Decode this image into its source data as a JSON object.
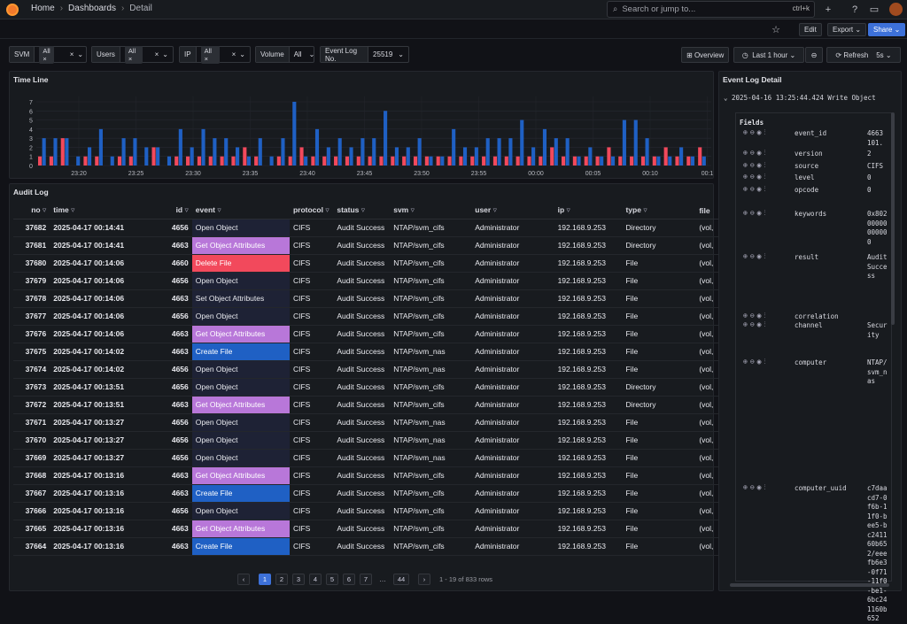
{
  "topbar": {
    "crumbs": [
      "Home",
      "Dashboards",
      "Detail"
    ],
    "search_placeholder": "Search or jump to...",
    "shortcut": "ctrl+k"
  },
  "toolbar": {
    "edit": "Edit",
    "export": "Export",
    "share": "Share"
  },
  "variables": [
    {
      "label": "SVM",
      "value": "All"
    },
    {
      "label": "Users",
      "value": "All"
    },
    {
      "label": "IP",
      "value": "All"
    },
    {
      "label": "Volume",
      "value": "All"
    },
    {
      "label": "Event Log No.",
      "value": "25519"
    }
  ],
  "controls": {
    "overview": "Overview",
    "timerange": "Last 1 hour",
    "refresh": "Refresh",
    "interval": "5s"
  },
  "timeline": {
    "title": "Time Line",
    "y_ticks": [
      "7",
      "6",
      "5",
      "4",
      "3",
      "2",
      "1",
      "0"
    ],
    "x_ticks": [
      "23:20",
      "23:25",
      "23:30",
      "23:35",
      "23:40",
      "23:45",
      "23:50",
      "23:55",
      "00:00",
      "00:05",
      "00:10",
      "00:1"
    ]
  },
  "chart_data": {
    "type": "bar",
    "title": "Time Line",
    "ylim": [
      0,
      7
    ],
    "series": [
      {
        "values": [
          3,
          3,
          3,
          1,
          2,
          4,
          1,
          3,
          3,
          2,
          2,
          1,
          4,
          2,
          4,
          3,
          3,
          2,
          1,
          3,
          1,
          3,
          7,
          1,
          4,
          2,
          3,
          2,
          3,
          3,
          6,
          2,
          2,
          3,
          1,
          1,
          4,
          2,
          2,
          3,
          3,
          3,
          5,
          2,
          4,
          3,
          3,
          1,
          2,
          1,
          1,
          5,
          5,
          3,
          1,
          1,
          2,
          1,
          1
        ]
      },
      {
        "values": [
          1,
          1,
          3,
          0,
          1,
          1,
          0,
          1,
          1,
          0,
          2,
          0,
          1,
          1,
          1,
          1,
          1,
          1,
          2,
          1,
          0,
          1,
          1,
          2,
          1,
          1,
          1,
          1,
          1,
          1,
          1,
          1,
          1,
          1,
          1,
          1,
          1,
          1,
          1,
          1,
          1,
          1,
          1,
          1,
          1,
          2,
          1,
          1,
          1,
          1,
          2,
          1,
          1,
          1,
          1,
          2,
          1,
          1,
          2
        ]
      }
    ]
  },
  "audit": {
    "title": "Audit Log",
    "columns": [
      "no",
      "time",
      "id",
      "event",
      "protocol",
      "status",
      "svm",
      "user",
      "ip",
      "type",
      "file"
    ],
    "rows": [
      [
        "37682",
        "2025-04-17 00:14:41",
        "4656",
        "Open Object",
        "CIFS",
        "Audit Success",
        "NTAP/svm_cifs",
        "Administrator",
        "192.168.9.253",
        "Directory",
        "(vol,"
      ],
      [
        "37681",
        "2025-04-17 00:14:41",
        "4663",
        "Get Object Attributes",
        "CIFS",
        "Audit Success",
        "NTAP/svm_cifs",
        "Administrator",
        "192.168.9.253",
        "Directory",
        "(vol,"
      ],
      [
        "37680",
        "2025-04-17 00:14:06",
        "4660",
        "Delete File",
        "CIFS",
        "Audit Success",
        "NTAP/svm_cifs",
        "Administrator",
        "192.168.9.253",
        "File",
        "(vol,"
      ],
      [
        "37679",
        "2025-04-17 00:14:06",
        "4656",
        "Open Object",
        "CIFS",
        "Audit Success",
        "NTAP/svm_cifs",
        "Administrator",
        "192.168.9.253",
        "File",
        "(vol,"
      ],
      [
        "37678",
        "2025-04-17 00:14:06",
        "4663",
        "Set Object Attributes",
        "CIFS",
        "Audit Success",
        "NTAP/svm_cifs",
        "Administrator",
        "192.168.9.253",
        "File",
        "(vol,"
      ],
      [
        "37677",
        "2025-04-17 00:14:06",
        "4656",
        "Open Object",
        "CIFS",
        "Audit Success",
        "NTAP/svm_cifs",
        "Administrator",
        "192.168.9.253",
        "File",
        "(vol,"
      ],
      [
        "37676",
        "2025-04-17 00:14:06",
        "4663",
        "Get Object Attributes",
        "CIFS",
        "Audit Success",
        "NTAP/svm_cifs",
        "Administrator",
        "192.168.9.253",
        "File",
        "(vol,"
      ],
      [
        "37675",
        "2025-04-17 00:14:02",
        "4663",
        "Create File",
        "CIFS",
        "Audit Success",
        "NTAP/svm_nas",
        "Administrator",
        "192.168.9.253",
        "File",
        "(vol,"
      ],
      [
        "37674",
        "2025-04-17 00:14:02",
        "4656",
        "Open Object",
        "CIFS",
        "Audit Success",
        "NTAP/svm_nas",
        "Administrator",
        "192.168.9.253",
        "File",
        "(vol,"
      ],
      [
        "37673",
        "2025-04-17 00:13:51",
        "4656",
        "Open Object",
        "CIFS",
        "Audit Success",
        "NTAP/svm_cifs",
        "Administrator",
        "192.168.9.253",
        "Directory",
        "(vol,"
      ],
      [
        "37672",
        "2025-04-17 00:13:51",
        "4663",
        "Get Object Attributes",
        "CIFS",
        "Audit Success",
        "NTAP/svm_cifs",
        "Administrator",
        "192.168.9.253",
        "Directory",
        "(vol,"
      ],
      [
        "37671",
        "2025-04-17 00:13:27",
        "4656",
        "Open Object",
        "CIFS",
        "Audit Success",
        "NTAP/svm_nas",
        "Administrator",
        "192.168.9.253",
        "File",
        "(vol,"
      ],
      [
        "37670",
        "2025-04-17 00:13:27",
        "4656",
        "Open Object",
        "CIFS",
        "Audit Success",
        "NTAP/svm_nas",
        "Administrator",
        "192.168.9.253",
        "File",
        "(vol,"
      ],
      [
        "37669",
        "2025-04-17 00:13:27",
        "4656",
        "Open Object",
        "CIFS",
        "Audit Success",
        "NTAP/svm_nas",
        "Administrator",
        "192.168.9.253",
        "File",
        "(vol,"
      ],
      [
        "37668",
        "2025-04-17 00:13:16",
        "4663",
        "Get Object Attributes",
        "CIFS",
        "Audit Success",
        "NTAP/svm_cifs",
        "Administrator",
        "192.168.9.253",
        "File",
        "(vol,"
      ],
      [
        "37667",
        "2025-04-17 00:13:16",
        "4663",
        "Create File",
        "CIFS",
        "Audit Success",
        "NTAP/svm_cifs",
        "Administrator",
        "192.168.9.253",
        "File",
        "(vol,"
      ],
      [
        "37666",
        "2025-04-17 00:13:16",
        "4656",
        "Open Object",
        "CIFS",
        "Audit Success",
        "NTAP/svm_cifs",
        "Administrator",
        "192.168.9.253",
        "File",
        "(vol,"
      ],
      [
        "37665",
        "2025-04-17 00:13:16",
        "4663",
        "Get Object Attributes",
        "CIFS",
        "Audit Success",
        "NTAP/svm_cifs",
        "Administrator",
        "192.168.9.253",
        "File",
        "(vol,"
      ],
      [
        "37664",
        "2025-04-17 00:13:16",
        "4663",
        "Create File",
        "CIFS",
        "Audit Success",
        "NTAP/svm_cifs",
        "Administrator",
        "192.168.9.253",
        "File",
        "(vol,"
      ]
    ]
  },
  "pager": {
    "pages": [
      "1",
      "2",
      "3",
      "4",
      "5",
      "6",
      "7",
      "…",
      "44"
    ],
    "summary": "1 - 19 of 833 rows"
  },
  "detail": {
    "title": "Event Log Detail",
    "header": "2025-04-16 13:25:44.424 Write Object",
    "fields_label": "Fields",
    "fields": [
      {
        "name": "event_id",
        "value": "4663"
      },
      {
        "name": "",
        "value": "101."
      },
      {
        "name": "version",
        "value": "2"
      },
      {
        "name": "source",
        "value": "CIFS"
      },
      {
        "name": "level",
        "value": "0"
      },
      {
        "name": "opcode",
        "value": "0"
      },
      {
        "name": "keywords",
        "value": "0x80200000000000"
      },
      {
        "name": "result",
        "value": "Audit Success"
      },
      {
        "name": "correlation",
        "value": ""
      },
      {
        "name": "channel",
        "value": "Security"
      },
      {
        "name": "computer",
        "value": "NTAP/svm_nas"
      },
      {
        "name": "computer_uuid",
        "value": "c7daacd7-0f6b-11f0-bee5-bc241160b652/eeefb6e3-0f71-11f0-be1-6bc241160b652"
      }
    ]
  }
}
